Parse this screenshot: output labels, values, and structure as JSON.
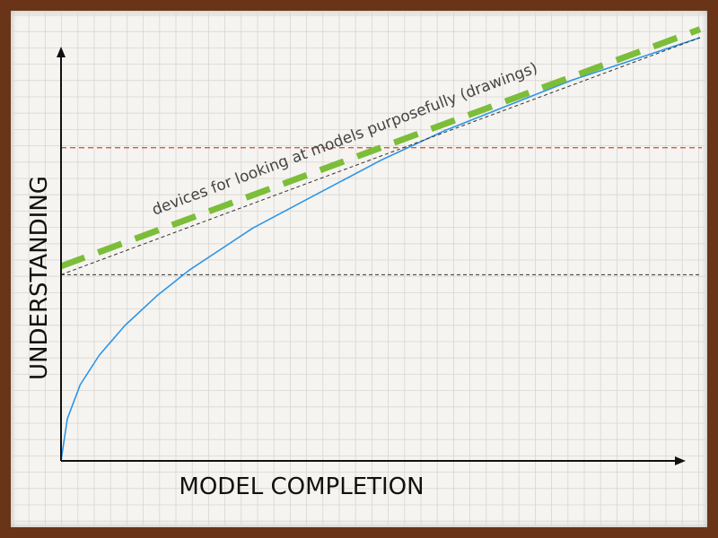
{
  "colors": {
    "frame": "#6a3418",
    "paper": "#f6f4f0",
    "grid": "#d9d6d2",
    "axis": "#111111",
    "curve": "#2b95e8",
    "dashed_green": "#7cbd3a",
    "dashed_red": "#e2553c",
    "dashed_black": "#333333"
  },
  "chart_data": {
    "type": "line",
    "title": "",
    "xlabel": "MODEL COMPLETION",
    "ylabel": "UNDERSTANDING",
    "xlim": [
      0,
      1
    ],
    "ylim": [
      0,
      1
    ],
    "grid": true,
    "tick_labels": "none",
    "annotation": "devices for looking at models purposefully (drawings)",
    "series": [
      {
        "style": "solid",
        "color": "#2b95e8",
        "x": [
          0,
          0.01,
          0.03,
          0.06,
          0.1,
          0.15,
          0.2,
          0.25,
          0.3,
          0.4,
          0.5,
          0.6,
          0.7,
          0.8,
          0.9,
          1.0
        ],
        "y": [
          0,
          0.1,
          0.18,
          0.25,
          0.32,
          0.39,
          0.45,
          0.5,
          0.55,
          0.63,
          0.71,
          0.78,
          0.84,
          0.9,
          0.95,
          1.0
        ]
      },
      {
        "style": "thick-dash",
        "color": "#7cbd3a",
        "x": [
          0,
          1.0
        ],
        "y": [
          0.46,
          1.02
        ]
      },
      {
        "style": "thin-dash",
        "color": "#333333",
        "x": [
          0,
          1.0
        ],
        "y": [
          0.44,
          1.0
        ]
      }
    ],
    "reference_lines": [
      {
        "orientation": "horizontal",
        "y": 0.74,
        "color": "#e2553c",
        "style": "dashed"
      },
      {
        "orientation": "horizontal",
        "y": 0.44,
        "color": "#333333",
        "style": "dashed"
      }
    ]
  }
}
